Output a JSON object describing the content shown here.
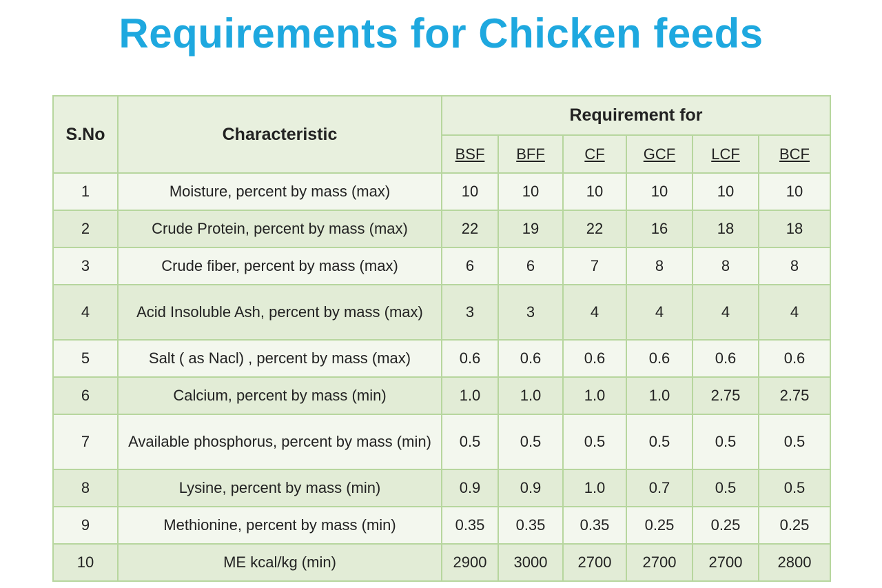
{
  "title": "Requirements for Chicken feeds",
  "table": {
    "sno_header": "S.No",
    "char_header": "Characteristic",
    "group_header": "Requirement for",
    "columns": [
      "BSF",
      "BFF",
      "CF",
      "GCF",
      "LCF",
      "BCF"
    ],
    "rows": [
      {
        "sno": "1",
        "characteristic": "Moisture, percent by mass (max)",
        "values": [
          "10",
          "10",
          "10",
          "10",
          "10",
          "10"
        ]
      },
      {
        "sno": "2",
        "characteristic": "Crude Protein, percent by mass (max)",
        "values": [
          "22",
          "19",
          "22",
          "16",
          "18",
          "18"
        ]
      },
      {
        "sno": "3",
        "characteristic": "Crude fiber, percent by mass (max)",
        "values": [
          "6",
          "6",
          "7",
          "8",
          "8",
          "8"
        ]
      },
      {
        "sno": "4",
        "characteristic": "Acid Insoluble Ash, percent by mass (max)",
        "values": [
          "3",
          "3",
          "4",
          "4",
          "4",
          "4"
        ]
      },
      {
        "sno": "5",
        "characteristic": "Salt ( as Nacl) , percent by mass (max)",
        "values": [
          "0.6",
          "0.6",
          "0.6",
          "0.6",
          "0.6",
          "0.6"
        ]
      },
      {
        "sno": "6",
        "characteristic": "Calcium, percent by mass (min)",
        "values": [
          "1.0",
          "1.0",
          "1.0",
          "1.0",
          "2.75",
          "2.75"
        ]
      },
      {
        "sno": "7",
        "characteristic": "Available phosphorus, percent by mass (min)",
        "values": [
          "0.5",
          "0.5",
          "0.5",
          "0.5",
          "0.5",
          "0.5"
        ]
      },
      {
        "sno": "8",
        "characteristic": "Lysine, percent by mass (min)",
        "values": [
          "0.9",
          "0.9",
          "1.0",
          "0.7",
          "0.5",
          "0.5"
        ]
      },
      {
        "sno": "9",
        "characteristic": "Methionine, percent by mass (min)",
        "values": [
          "0.35",
          "0.35",
          "0.35",
          "0.25",
          "0.25",
          "0.25"
        ]
      },
      {
        "sno": "10",
        "characteristic": "ME kcal/kg (min)",
        "values": [
          "2900",
          "3000",
          "2700",
          "2700",
          "2700",
          "2800"
        ]
      }
    ]
  },
  "colors": {
    "title": "#1ea8df",
    "header_bg": "#e8f0de",
    "row_light": "#f3f7ee",
    "row_dark": "#e2ecd6",
    "border": "#b7d69e"
  }
}
